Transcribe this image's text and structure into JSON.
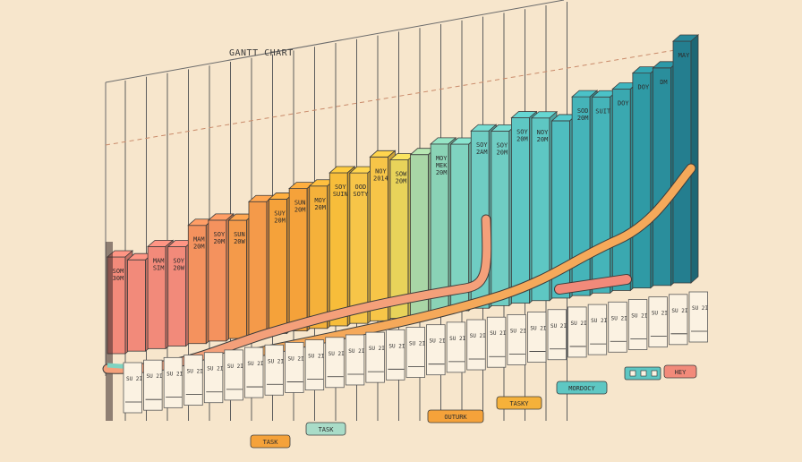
{
  "chart_data": {
    "type": "bar",
    "title": "GANTT CHART",
    "xlabel": "",
    "ylabel": "",
    "grid": true,
    "bars": [
      {
        "label": "SOM 30M",
        "color": "#f28a7a",
        "h": 0.36
      },
      {
        "label": "",
        "color": "#f28a7a",
        "h": 0.34
      },
      {
        "label": "MAM SIM",
        "color": "#f28a7a",
        "h": 0.38
      },
      {
        "label": "SOY 20W",
        "color": "#f28a7a",
        "h": 0.37
      },
      {
        "label": "MAM 20M",
        "color": "#f4925e",
        "h": 0.44
      },
      {
        "label": "SOY 20M",
        "color": "#f4925e",
        "h": 0.45
      },
      {
        "label": "SUN 20W",
        "color": "#f49a4a",
        "h": 0.44
      },
      {
        "label": "",
        "color": "#f49a4a",
        "h": 0.5
      },
      {
        "label": "SUY 20M",
        "color": "#f5a23a",
        "h": 0.5
      },
      {
        "label": "SUN 20M",
        "color": "#f5a23a",
        "h": 0.53
      },
      {
        "label": "MOY 20M",
        "color": "#f5b13a",
        "h": 0.53
      },
      {
        "label": "SOY SUIN",
        "color": "#f7bd3a",
        "h": 0.57
      },
      {
        "label": "OOD SOTY",
        "color": "#f7c548",
        "h": 0.56
      },
      {
        "label": "NOY 2014",
        "color": "#f7c548",
        "h": 0.61
      },
      {
        "label": "SOW 20M",
        "color": "#e8d35a",
        "h": 0.59
      },
      {
        "label": "",
        "color": "#a9d6a6",
        "h": 0.6
      },
      {
        "label": "MOY MEK 20M",
        "color": "#8ad3b6",
        "h": 0.63
      },
      {
        "label": "",
        "color": "#7fd3c0",
        "h": 0.62
      },
      {
        "label": "SOY 2AM",
        "color": "#6fcdc3",
        "h": 0.66
      },
      {
        "label": "SOY 20M",
        "color": "#6fcdc3",
        "h": 0.65
      },
      {
        "label": "SOY 20M",
        "color": "#5ec7c3",
        "h": 0.69
      },
      {
        "label": "NOY 20M",
        "color": "#5ec7c3",
        "h": 0.68
      },
      {
        "label": "",
        "color": "#4fbdbf",
        "h": 0.66
      },
      {
        "label": "SOD 20M",
        "color": "#45b4b9",
        "h": 0.74
      },
      {
        "label": "SUIT",
        "color": "#45b4b9",
        "h": 0.73
      },
      {
        "label": "DOY",
        "color": "#3aa8b0",
        "h": 0.75
      },
      {
        "label": "DOY",
        "color": "#2f9aa5",
        "h": 0.8
      },
      {
        "label": "DM",
        "color": "#2a8e9c",
        "h": 0.81
      },
      {
        "label": "MAY",
        "color": "#247e8f",
        "h": 0.9
      }
    ],
    "base_labels": [
      "SU 2I",
      "SU 2I",
      "SU 2I",
      "SU 2I",
      "SU 2I",
      "SU 2I",
      "SU 2I",
      "SU 2I",
      "SU 2I",
      "SU 2I",
      "SU 2I",
      "SU 2I",
      "SU 2I",
      "SU 2I",
      "SU 2I",
      "SU 2I",
      "SU 2I",
      "SU 2I",
      "SU 2I",
      "SU 2I",
      "SU 2I",
      "SU 2I",
      "SU 2I",
      "SU 2I",
      "SU 2I",
      "SU 2I",
      "SU 2I",
      "SU 2I",
      "SU 2I"
    ],
    "tags": [
      {
        "label": "TASK",
        "color": "#f5a23a"
      },
      {
        "label": "TASK",
        "color": "#a9dcc8"
      },
      {
        "label": "OUTURK",
        "color": "#f5a23a"
      },
      {
        "label": "TASKY",
        "color": "#f5b13a"
      },
      {
        "label": "MORDOCY",
        "color": "#5ec7c3"
      },
      {
        "label": "HEY",
        "color": "#f28a7a"
      }
    ]
  }
}
